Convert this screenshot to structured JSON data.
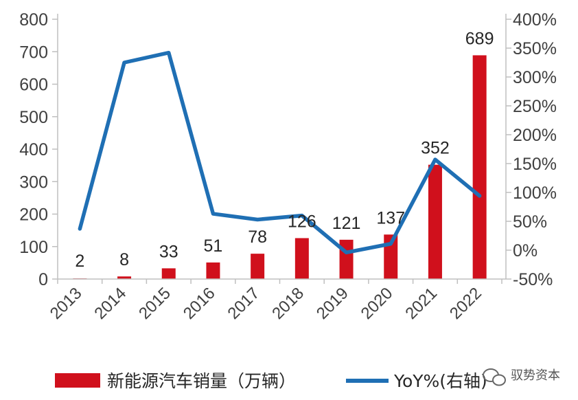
{
  "chart_data": {
    "type": "bar+line",
    "categories": [
      "2013",
      "2014",
      "2015",
      "2016",
      "2017",
      "2018",
      "2019",
      "2020",
      "2021",
      "2022"
    ],
    "series": [
      {
        "name": "新能源汽车销量（万辆）",
        "type": "bar",
        "axis": "left",
        "color": "#d0101c",
        "values": [
          2,
          8,
          33,
          51,
          78,
          126,
          121,
          137,
          352,
          689
        ],
        "labels": [
          "2",
          "8",
          "33",
          "51",
          "78",
          "126",
          "121",
          "137",
          "352",
          "689"
        ]
      },
      {
        "name": "YoY%(右轴)",
        "type": "line",
        "axis": "right",
        "color": "#1f6fb4",
        "values": [
          37,
          325,
          342,
          63,
          53,
          60,
          -4,
          11,
          157,
          94
        ]
      }
    ],
    "y_left": {
      "min": 0,
      "max": 800,
      "ticks": [
        "0",
        "100",
        "200",
        "300",
        "400",
        "500",
        "600",
        "700",
        "800"
      ]
    },
    "y_right": {
      "min": -50,
      "max": 400,
      "ticks": [
        "-50%",
        "0%",
        "50%",
        "100%",
        "150%",
        "200%",
        "250%",
        "300%",
        "350%",
        "400%"
      ]
    }
  },
  "legend": {
    "bar_label": "新能源汽车销量（万辆）",
    "line_label": "YoY%(右轴)"
  },
  "watermark": {
    "text": "驭势资本"
  }
}
